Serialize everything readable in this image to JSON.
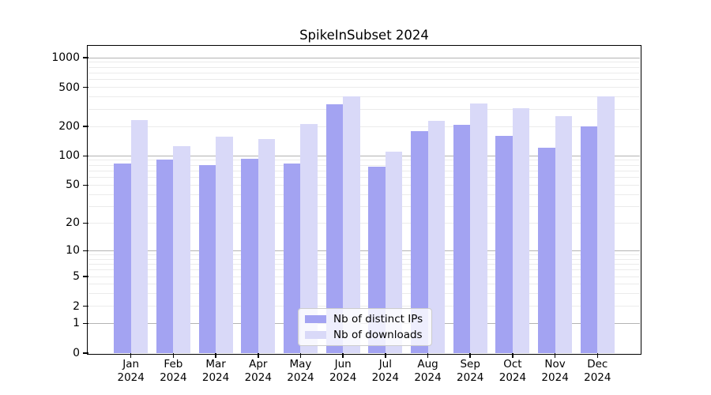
{
  "chart_data": {
    "type": "bar",
    "title": "SpikeInSubset 2024",
    "categories": [
      [
        "Jan",
        "2024"
      ],
      [
        "Feb",
        "2024"
      ],
      [
        "Mar",
        "2024"
      ],
      [
        "Apr",
        "2024"
      ],
      [
        "May",
        "2024"
      ],
      [
        "Jun",
        "2024"
      ],
      [
        "Jul",
        "2024"
      ],
      [
        "Aug",
        "2024"
      ],
      [
        "Sep",
        "2024"
      ],
      [
        "Oct",
        "2024"
      ],
      [
        "Nov",
        "2024"
      ],
      [
        "Dec",
        "2024"
      ]
    ],
    "series": [
      {
        "name": "Nb of distinct IPs",
        "color": "#a3a3f2",
        "values": [
          84,
          91,
          80,
          94,
          84,
          335,
          78,
          180,
          207,
          159,
          121,
          199
        ]
      },
      {
        "name": "Nb of downloads",
        "color": "#d9d9f8",
        "values": [
          232,
          126,
          158,
          150,
          212,
          402,
          110,
          228,
          340,
          304,
          255,
          404
        ]
      }
    ],
    "xlabel": "",
    "ylabel": "",
    "y_scale": "log1p",
    "y_ticks": [
      0,
      1,
      2,
      5,
      10,
      20,
      50,
      100,
      200,
      500,
      1000
    ],
    "ylim": [
      0,
      1300
    ],
    "grid": {
      "major": [
        1,
        10,
        100,
        1000
      ],
      "minor": [
        2,
        3,
        4,
        5,
        6,
        7,
        8,
        9,
        20,
        30,
        40,
        50,
        60,
        70,
        80,
        90,
        200,
        300,
        400,
        500,
        600,
        700,
        800,
        900
      ]
    },
    "legend_position": "lower center"
  },
  "colors": {
    "background": "#ffffff",
    "axis": "#000000",
    "grid_major": "#b3b3b3",
    "grid_minor": "#ebebeb",
    "legend_border": "#cccccc"
  }
}
